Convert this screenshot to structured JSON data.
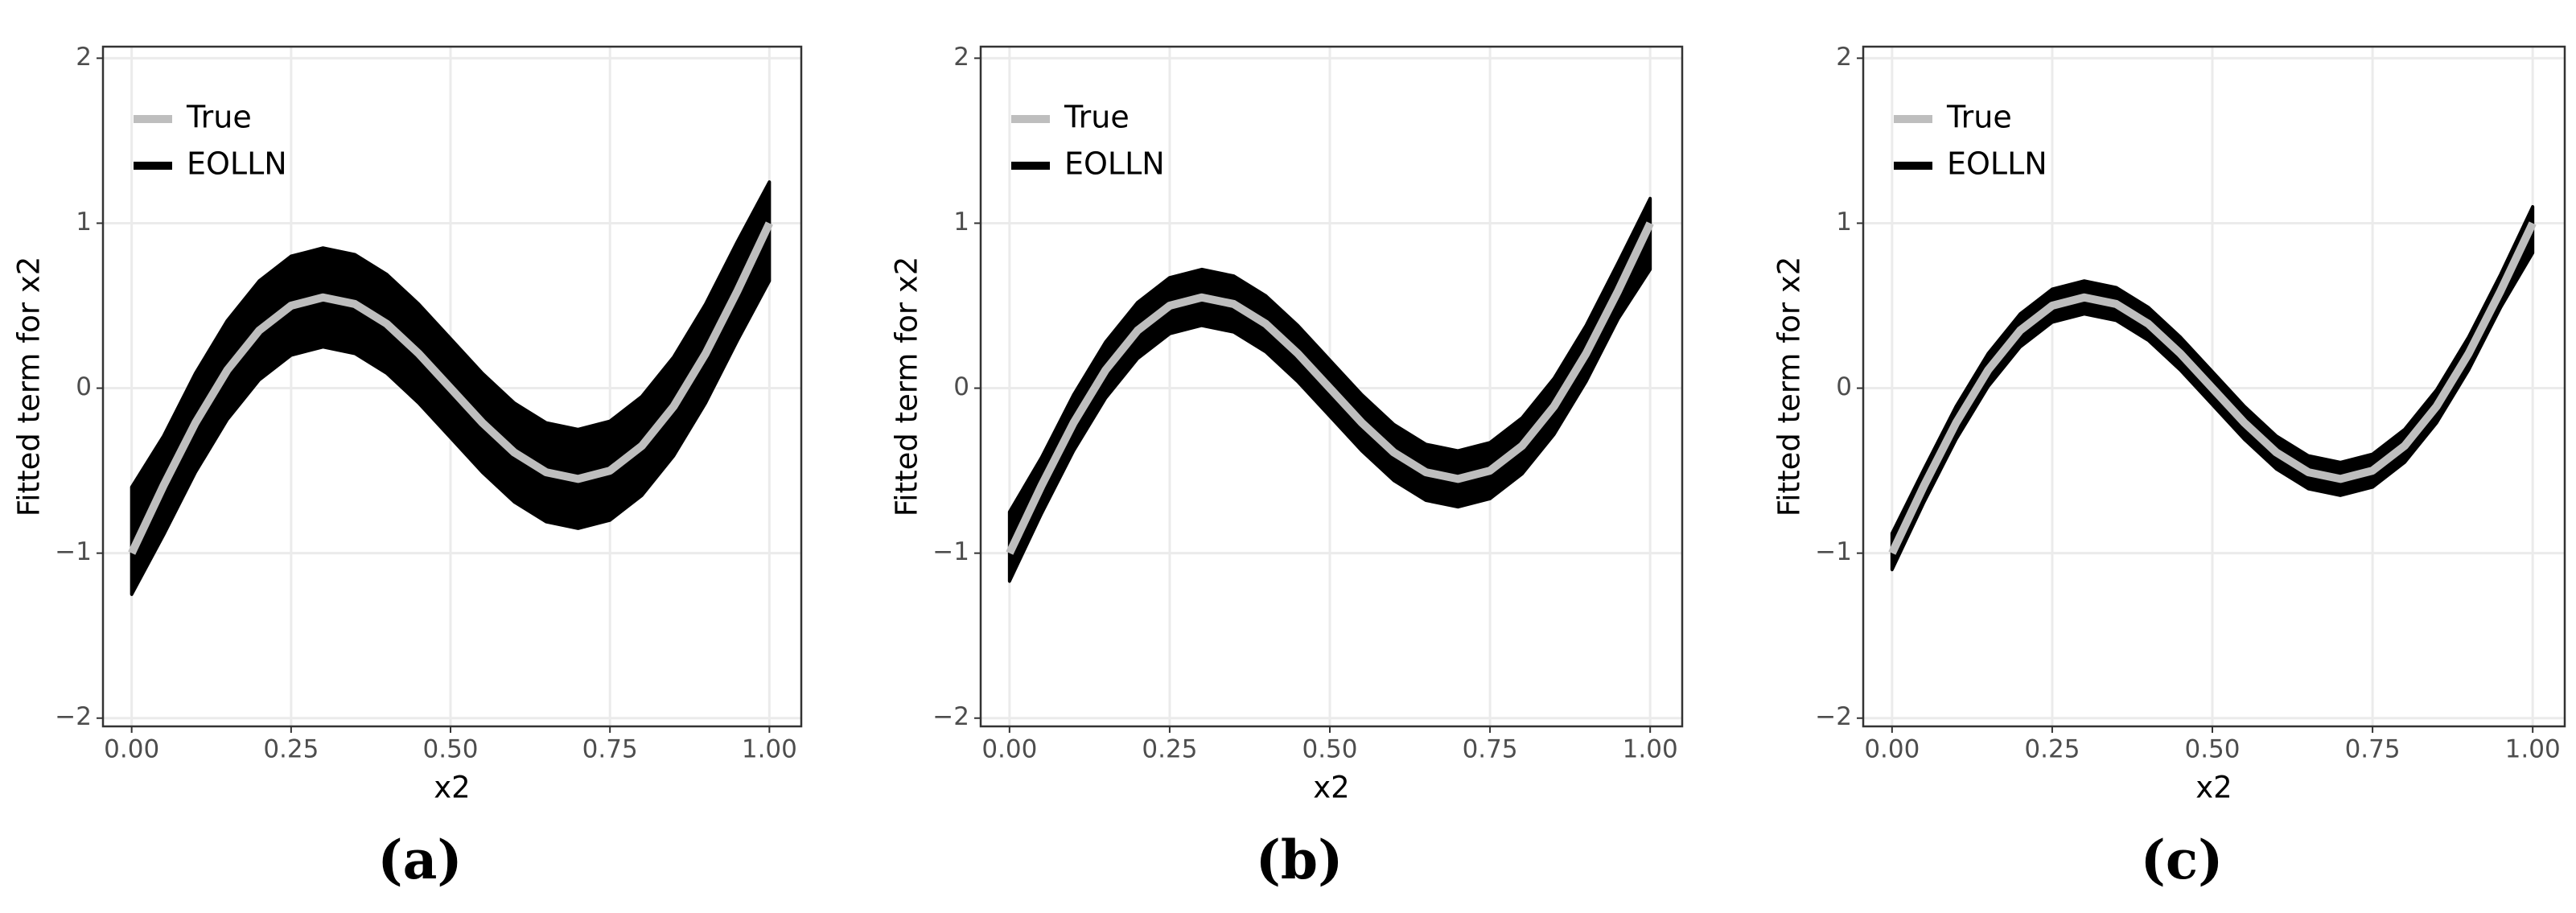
{
  "chart_data": [
    {
      "type": "line",
      "caption": "(a)",
      "xlabel": "x2",
      "ylabel": "Fitted term for x2",
      "x": [
        0,
        0.05,
        0.1,
        0.15,
        0.2,
        0.25,
        0.3,
        0.35,
        0.4,
        0.45,
        0.5,
        0.55,
        0.6,
        0.65,
        0.7,
        0.75,
        0.8,
        0.85,
        0.9,
        0.95,
        1
      ],
      "series": [
        {
          "name": "True",
          "color": "#bebebe",
          "values": [
            -1,
            -0.59,
            -0.21,
            0.11,
            0.35,
            0.5,
            0.55,
            0.51,
            0.39,
            0.21,
            0,
            -0.21,
            -0.39,
            -0.51,
            -0.55,
            -0.5,
            -0.35,
            -0.11,
            0.21,
            0.59,
            1
          ]
        },
        {
          "name": "EOLLN",
          "color": "#000000",
          "upper": [
            -0.6,
            -0.29,
            0.09,
            0.41,
            0.65,
            0.8,
            0.85,
            0.81,
            0.69,
            0.51,
            0.3,
            0.09,
            -0.09,
            -0.21,
            -0.25,
            -0.2,
            -0.05,
            0.19,
            0.51,
            0.89,
            1.25
          ],
          "lower": [
            -1.25,
            -0.89,
            -0.51,
            -0.19,
            0.05,
            0.2,
            0.25,
            0.21,
            0.09,
            -0.09,
            -0.3,
            -0.51,
            -0.69,
            -0.81,
            -0.85,
            -0.8,
            -0.65,
            -0.41,
            -0.09,
            0.29,
            0.65
          ]
        }
      ],
      "xlim": [
        -0.045,
        1.05
      ],
      "ylim": [
        -2.05,
        2.07
      ],
      "xticks": [
        {
          "value": 0,
          "label": "0.00"
        },
        {
          "value": 0.25,
          "label": "0.25"
        },
        {
          "value": 0.5,
          "label": "0.50"
        },
        {
          "value": 0.75,
          "label": "0.75"
        },
        {
          "value": 1,
          "label": "1.00"
        }
      ],
      "yticks": [
        {
          "value": -2,
          "label": "−2"
        },
        {
          "value": -1,
          "label": "−1"
        },
        0,
        1,
        2
      ],
      "grid": true,
      "legend": "top-left"
    },
    {
      "type": "line",
      "caption": "(b)",
      "xlabel": "x2",
      "ylabel": "Fitted term for x2",
      "x": [
        0,
        0.05,
        0.1,
        0.15,
        0.2,
        0.25,
        0.3,
        0.35,
        0.4,
        0.45,
        0.5,
        0.55,
        0.6,
        0.65,
        0.7,
        0.75,
        0.8,
        0.85,
        0.9,
        0.95,
        1
      ],
      "series": [
        {
          "name": "True",
          "color": "#bebebe",
          "values": [
            -1,
            -0.59,
            -0.21,
            0.11,
            0.35,
            0.5,
            0.55,
            0.51,
            0.39,
            0.21,
            0,
            -0.21,
            -0.39,
            -0.51,
            -0.55,
            -0.5,
            -0.35,
            -0.11,
            0.21,
            0.59,
            1
          ]
        },
        {
          "name": "EOLLN",
          "color": "#000000",
          "upper": [
            -0.75,
            -0.42,
            -0.04,
            0.28,
            0.52,
            0.67,
            0.72,
            0.68,
            0.56,
            0.38,
            0.17,
            -0.04,
            -0.22,
            -0.34,
            -0.38,
            -0.33,
            -0.18,
            0.06,
            0.38,
            0.76,
            1.15
          ],
          "lower": [
            -1.17,
            -0.76,
            -0.38,
            -0.06,
            0.18,
            0.33,
            0.38,
            0.34,
            0.22,
            0.04,
            -0.17,
            -0.38,
            -0.56,
            -0.68,
            -0.72,
            -0.67,
            -0.52,
            -0.28,
            0.04,
            0.42,
            0.72
          ]
        }
      ],
      "xlim": [
        -0.045,
        1.05
      ],
      "ylim": [
        -2.05,
        2.07
      ],
      "xticks": [
        {
          "value": 0,
          "label": "0.00"
        },
        {
          "value": 0.25,
          "label": "0.25"
        },
        {
          "value": 0.5,
          "label": "0.50"
        },
        {
          "value": 0.75,
          "label": "0.75"
        },
        {
          "value": 1,
          "label": "1.00"
        }
      ],
      "yticks": [
        {
          "value": -2,
          "label": "−2"
        },
        {
          "value": -1,
          "label": "−1"
        },
        0,
        1,
        2
      ],
      "grid": true,
      "legend": "top-left"
    },
    {
      "type": "line",
      "caption": "(c)",
      "xlabel": "x2",
      "ylabel": "Fitted term for x2",
      "x": [
        0,
        0.05,
        0.1,
        0.15,
        0.2,
        0.25,
        0.3,
        0.35,
        0.4,
        0.45,
        0.5,
        0.55,
        0.6,
        0.65,
        0.7,
        0.75,
        0.8,
        0.85,
        0.9,
        0.95,
        1
      ],
      "series": [
        {
          "name": "True",
          "color": "#bebebe",
          "values": [
            -1,
            -0.59,
            -0.21,
            0.11,
            0.35,
            0.5,
            0.55,
            0.51,
            0.39,
            0.21,
            0,
            -0.21,
            -0.39,
            -0.51,
            -0.55,
            -0.5,
            -0.35,
            -0.11,
            0.21,
            0.59,
            1
          ]
        },
        {
          "name": "EOLLN",
          "color": "#000000",
          "upper": [
            -0.88,
            -0.49,
            -0.11,
            0.21,
            0.45,
            0.6,
            0.65,
            0.61,
            0.49,
            0.31,
            0.1,
            -0.11,
            -0.29,
            -0.41,
            -0.45,
            -0.4,
            -0.25,
            -0.01,
            0.31,
            0.69,
            1.1
          ],
          "lower": [
            -1.1,
            -0.69,
            -0.31,
            0.01,
            0.25,
            0.4,
            0.45,
            0.41,
            0.29,
            0.11,
            -0.1,
            -0.31,
            -0.49,
            -0.61,
            -0.65,
            -0.6,
            -0.45,
            -0.21,
            0.11,
            0.49,
            0.82
          ]
        }
      ],
      "xlim": [
        -0.045,
        1.05
      ],
      "ylim": [
        -2.05,
        2.07
      ],
      "xticks": [
        {
          "value": 0,
          "label": "0.00"
        },
        {
          "value": 0.25,
          "label": "0.25"
        },
        {
          "value": 0.5,
          "label": "0.50"
        },
        {
          "value": 0.75,
          "label": "0.75"
        },
        {
          "value": 1,
          "label": "1.00"
        }
      ],
      "yticks": [
        {
          "value": -2,
          "label": "−2"
        },
        {
          "value": -1,
          "label": "−1"
        },
        0,
        1,
        2
      ],
      "grid": true,
      "legend": "top-left"
    }
  ]
}
